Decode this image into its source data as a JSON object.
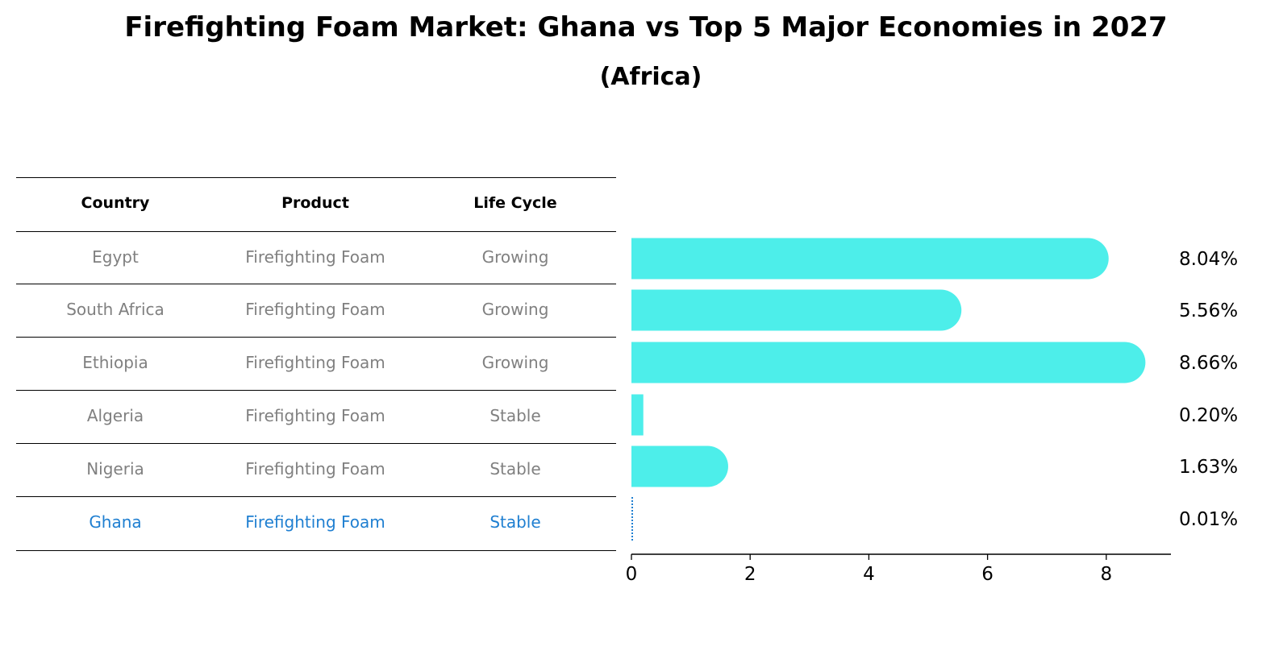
{
  "title": "Firefighting Foam Market: Ghana vs Top 5 Major Economies in 2027",
  "subtitle": "(Africa)",
  "table": {
    "headers": [
      "Country",
      "Product",
      "Life Cycle"
    ],
    "rows": [
      {
        "country": "Egypt",
        "product": "Firefighting Foam",
        "life_cycle": "Growing"
      },
      {
        "country": "South Africa",
        "product": "Firefighting Foam",
        "life_cycle": "Growing"
      },
      {
        "country": "Ethiopia",
        "product": "Firefighting Foam",
        "life_cycle": "Growing"
      },
      {
        "country": "Algeria",
        "product": "Firefighting Foam",
        "life_cycle": "Stable"
      },
      {
        "country": "Nigeria",
        "product": "Firefighting Foam",
        "life_cycle": "Stable"
      },
      {
        "country": "Ghana",
        "product": "Firefighting Foam",
        "life_cycle": "Stable",
        "highlight": true
      }
    ]
  },
  "colors": {
    "bar": "#4deeea",
    "highlight": "#1f7fd1",
    "muted_text": "#808080"
  },
  "chart_data": {
    "type": "bar",
    "orientation": "horizontal",
    "title": "Firefighting Foam Market: Ghana vs Top 5 Major Economies in 2027",
    "subtitle": "(Africa)",
    "categories": [
      "Egypt",
      "South Africa",
      "Ethiopia",
      "Algeria",
      "Nigeria",
      "Ghana"
    ],
    "values": [
      8.04,
      5.56,
      8.66,
      0.2,
      1.63,
      0.01
    ],
    "value_labels": [
      "8.04%",
      "5.56%",
      "8.66%",
      "0.20%",
      "1.63%",
      "0.01%"
    ],
    "xticks": [
      0,
      2,
      4,
      6,
      8
    ],
    "xlim": [
      0,
      9.1
    ],
    "grid": false,
    "highlight_category": "Ghana"
  }
}
